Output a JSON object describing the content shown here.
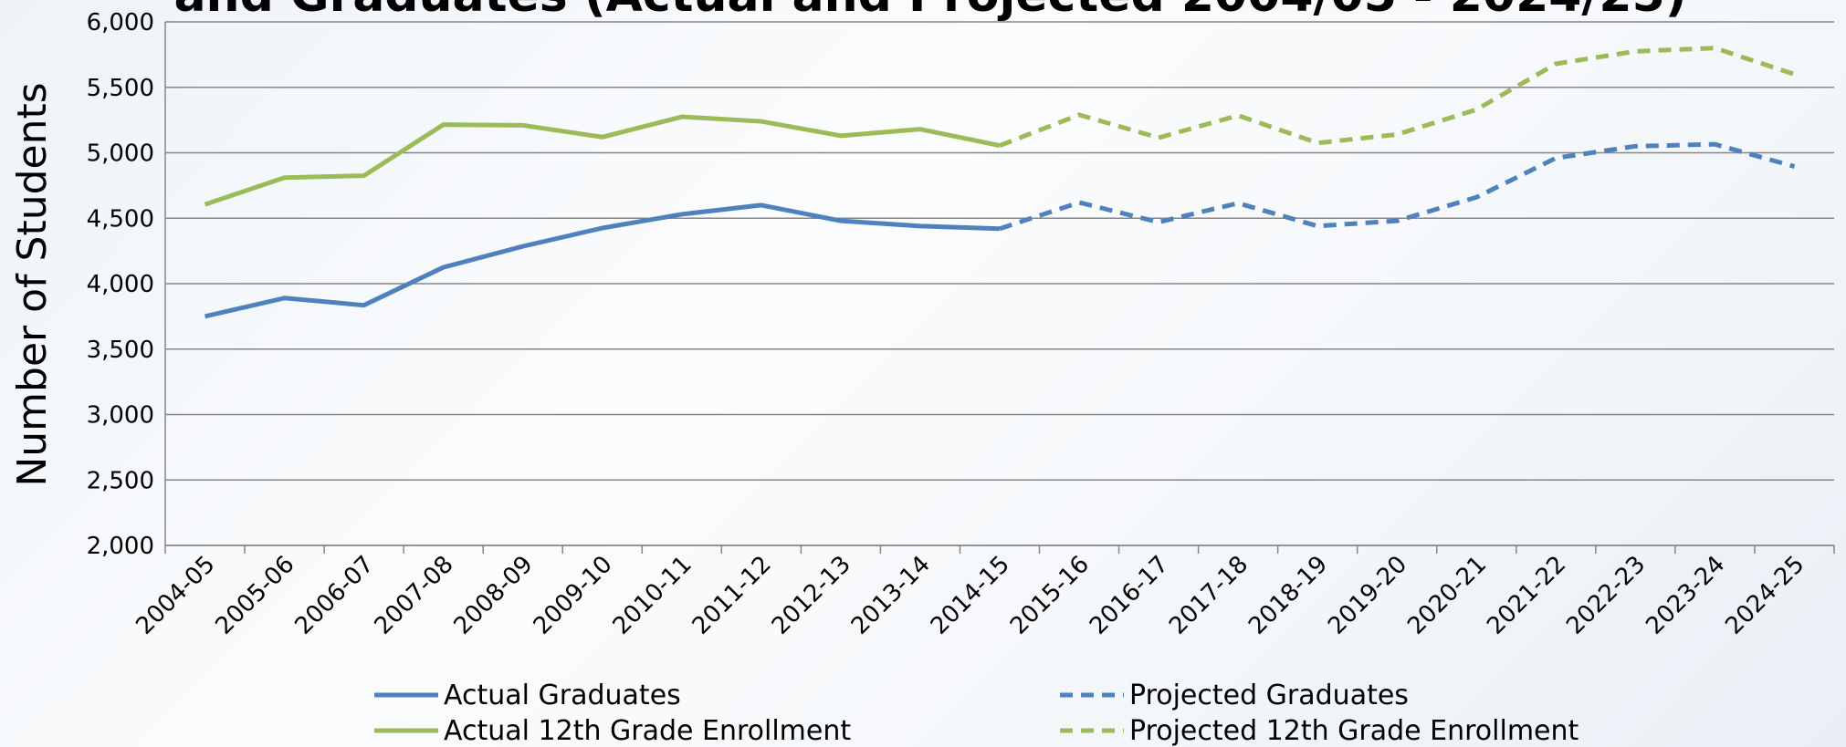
{
  "chart_data": {
    "type": "line",
    "title": "and Graduates (Actual and Projected 2004/05 - 2024/25)",
    "y_label": "Number of Students",
    "categories": [
      "2004-05",
      "2005-06",
      "2006-07",
      "2007-08",
      "2008-09",
      "2009-10",
      "2010-11",
      "2011-12",
      "2012-13",
      "2013-14",
      "2014-15",
      "2015-16",
      "2016-17",
      "2017-18",
      "2018-19",
      "2019-20",
      "2020-21",
      "2021-22",
      "2022-23",
      "2023-24",
      "2024-25"
    ],
    "series": [
      {
        "name": "Actual Graduates",
        "color": "#4f81bd",
        "dashed": false,
        "values": [
          3750,
          3890,
          3835,
          4125,
          4285,
          4425,
          4530,
          4600,
          4480,
          4440,
          4420,
          null,
          null,
          null,
          null,
          null,
          null,
          null,
          null,
          null,
          null
        ]
      },
      {
        "name": "Projected Graduates",
        "color": "#4f81bd",
        "dashed": true,
        "values": [
          null,
          null,
          null,
          null,
          null,
          null,
          null,
          null,
          null,
          null,
          4420,
          4620,
          4470,
          4615,
          4440,
          4480,
          4660,
          4960,
          5050,
          5065,
          4895
        ]
      },
      {
        "name": "Actual 12th Grade Enrollment",
        "color": "#9bbb59",
        "dashed": false,
        "values": [
          4605,
          4810,
          4825,
          5215,
          5210,
          5120,
          5275,
          5240,
          5130,
          5180,
          5055,
          null,
          null,
          null,
          null,
          null,
          null,
          null,
          null,
          null,
          null
        ]
      },
      {
        "name": "Projected 12th Grade Enrollment",
        "color": "#9bbb59",
        "dashed": true,
        "values": [
          null,
          null,
          null,
          null,
          null,
          null,
          null,
          null,
          null,
          null,
          5055,
          5290,
          5115,
          5285,
          5075,
          5140,
          5330,
          5680,
          5775,
          5800,
          5600
        ]
      }
    ],
    "ylim": [
      2000,
      6000
    ],
    "yticks": [
      {
        "value": 2000,
        "label": "2,000"
      },
      {
        "value": 2500,
        "label": "2,500"
      },
      {
        "value": 3000,
        "label": "3,000"
      },
      {
        "value": 3500,
        "label": "3,500"
      },
      {
        "value": 4000,
        "label": "4,000"
      },
      {
        "value": 4500,
        "label": "4,500"
      },
      {
        "value": 5000,
        "label": "5,000"
      },
      {
        "value": 5500,
        "label": "5,500"
      },
      {
        "value": 6000,
        "label": "6,000"
      }
    ],
    "grid": true,
    "legend": "bottom"
  }
}
